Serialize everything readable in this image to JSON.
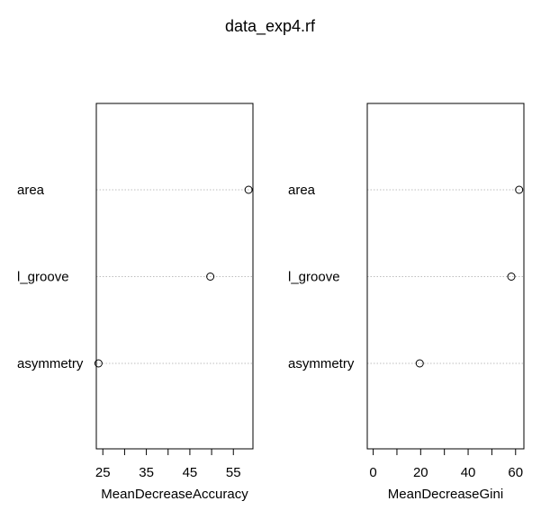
{
  "chart_data": {
    "type": "scatter",
    "title": "data_exp4.rf",
    "variables": [
      "area",
      "l_groove",
      "asymmetry"
    ],
    "panels": [
      {
        "xlabel": "MeanDecreaseAccuracy",
        "xlim": [
          23.5,
          59.5
        ],
        "ticks": [
          25,
          30,
          35,
          40,
          45,
          50,
          55
        ],
        "tick_labels": [
          "25",
          "",
          "35",
          "",
          "45",
          "",
          "55"
        ],
        "values": [
          58.5,
          49.7,
          24.0
        ],
        "grid": "dotted"
      },
      {
        "xlabel": "MeanDecreaseGini",
        "xlim": [
          -2.5,
          63.5
        ],
        "ticks": [
          0,
          10,
          20,
          30,
          40,
          50,
          60
        ],
        "tick_labels": [
          "0",
          "",
          "20",
          "",
          "40",
          "",
          "60"
        ],
        "values": [
          61.5,
          58.2,
          19.6
        ],
        "grid": "dotted"
      }
    ]
  }
}
